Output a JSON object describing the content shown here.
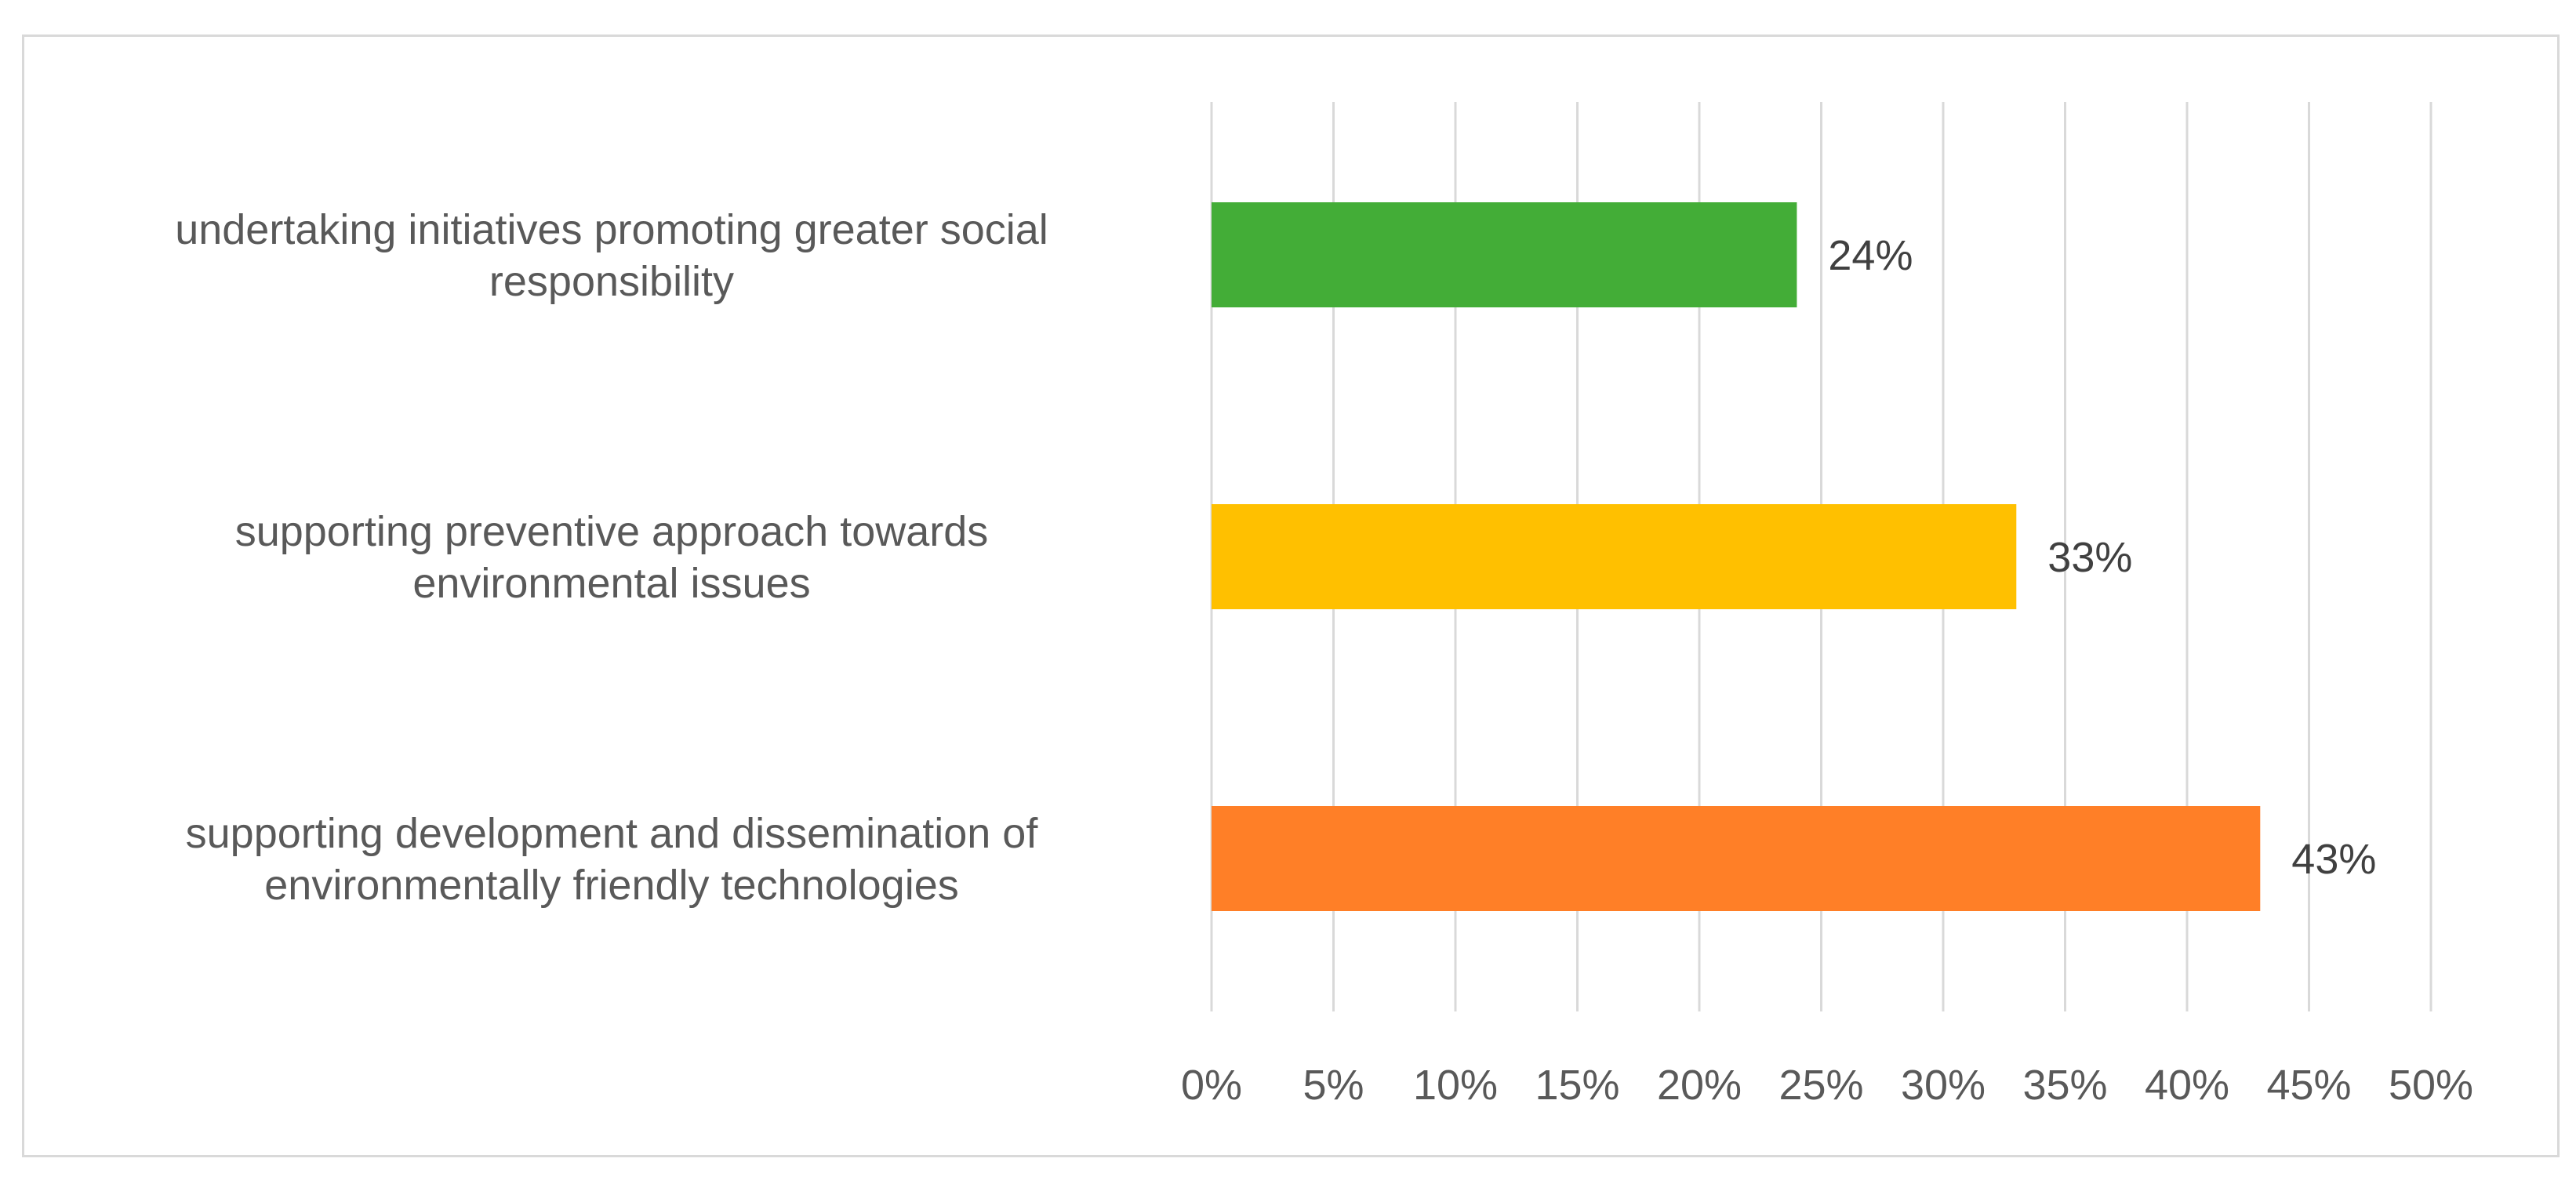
{
  "chart_data": {
    "type": "bar",
    "orientation": "horizontal",
    "title": "",
    "xlabel": "",
    "ylabel": "",
    "categories": [
      [
        "undertaking initiatives promoting greater social",
        "responsibility"
      ],
      [
        "supporting preventive approach towards",
        "environmental issues"
      ],
      [
        "supporting development and dissemination of",
        "environmentally friendly technologies"
      ]
    ],
    "values": [
      24,
      33,
      43
    ],
    "value_labels": [
      "24%",
      "33%",
      "43%"
    ],
    "colors": [
      "#43ad37",
      "#ffc000",
      "#ff7f27"
    ],
    "xlim": [
      0,
      50
    ],
    "x_tick_step": 5,
    "x_ticks": [
      "0%",
      "5%",
      "10%",
      "15%",
      "20%",
      "25%",
      "30%",
      "35%",
      "40%",
      "45%",
      "50%"
    ],
    "grid": true,
    "grid_color": "#d9d9d9",
    "legend": "none"
  }
}
